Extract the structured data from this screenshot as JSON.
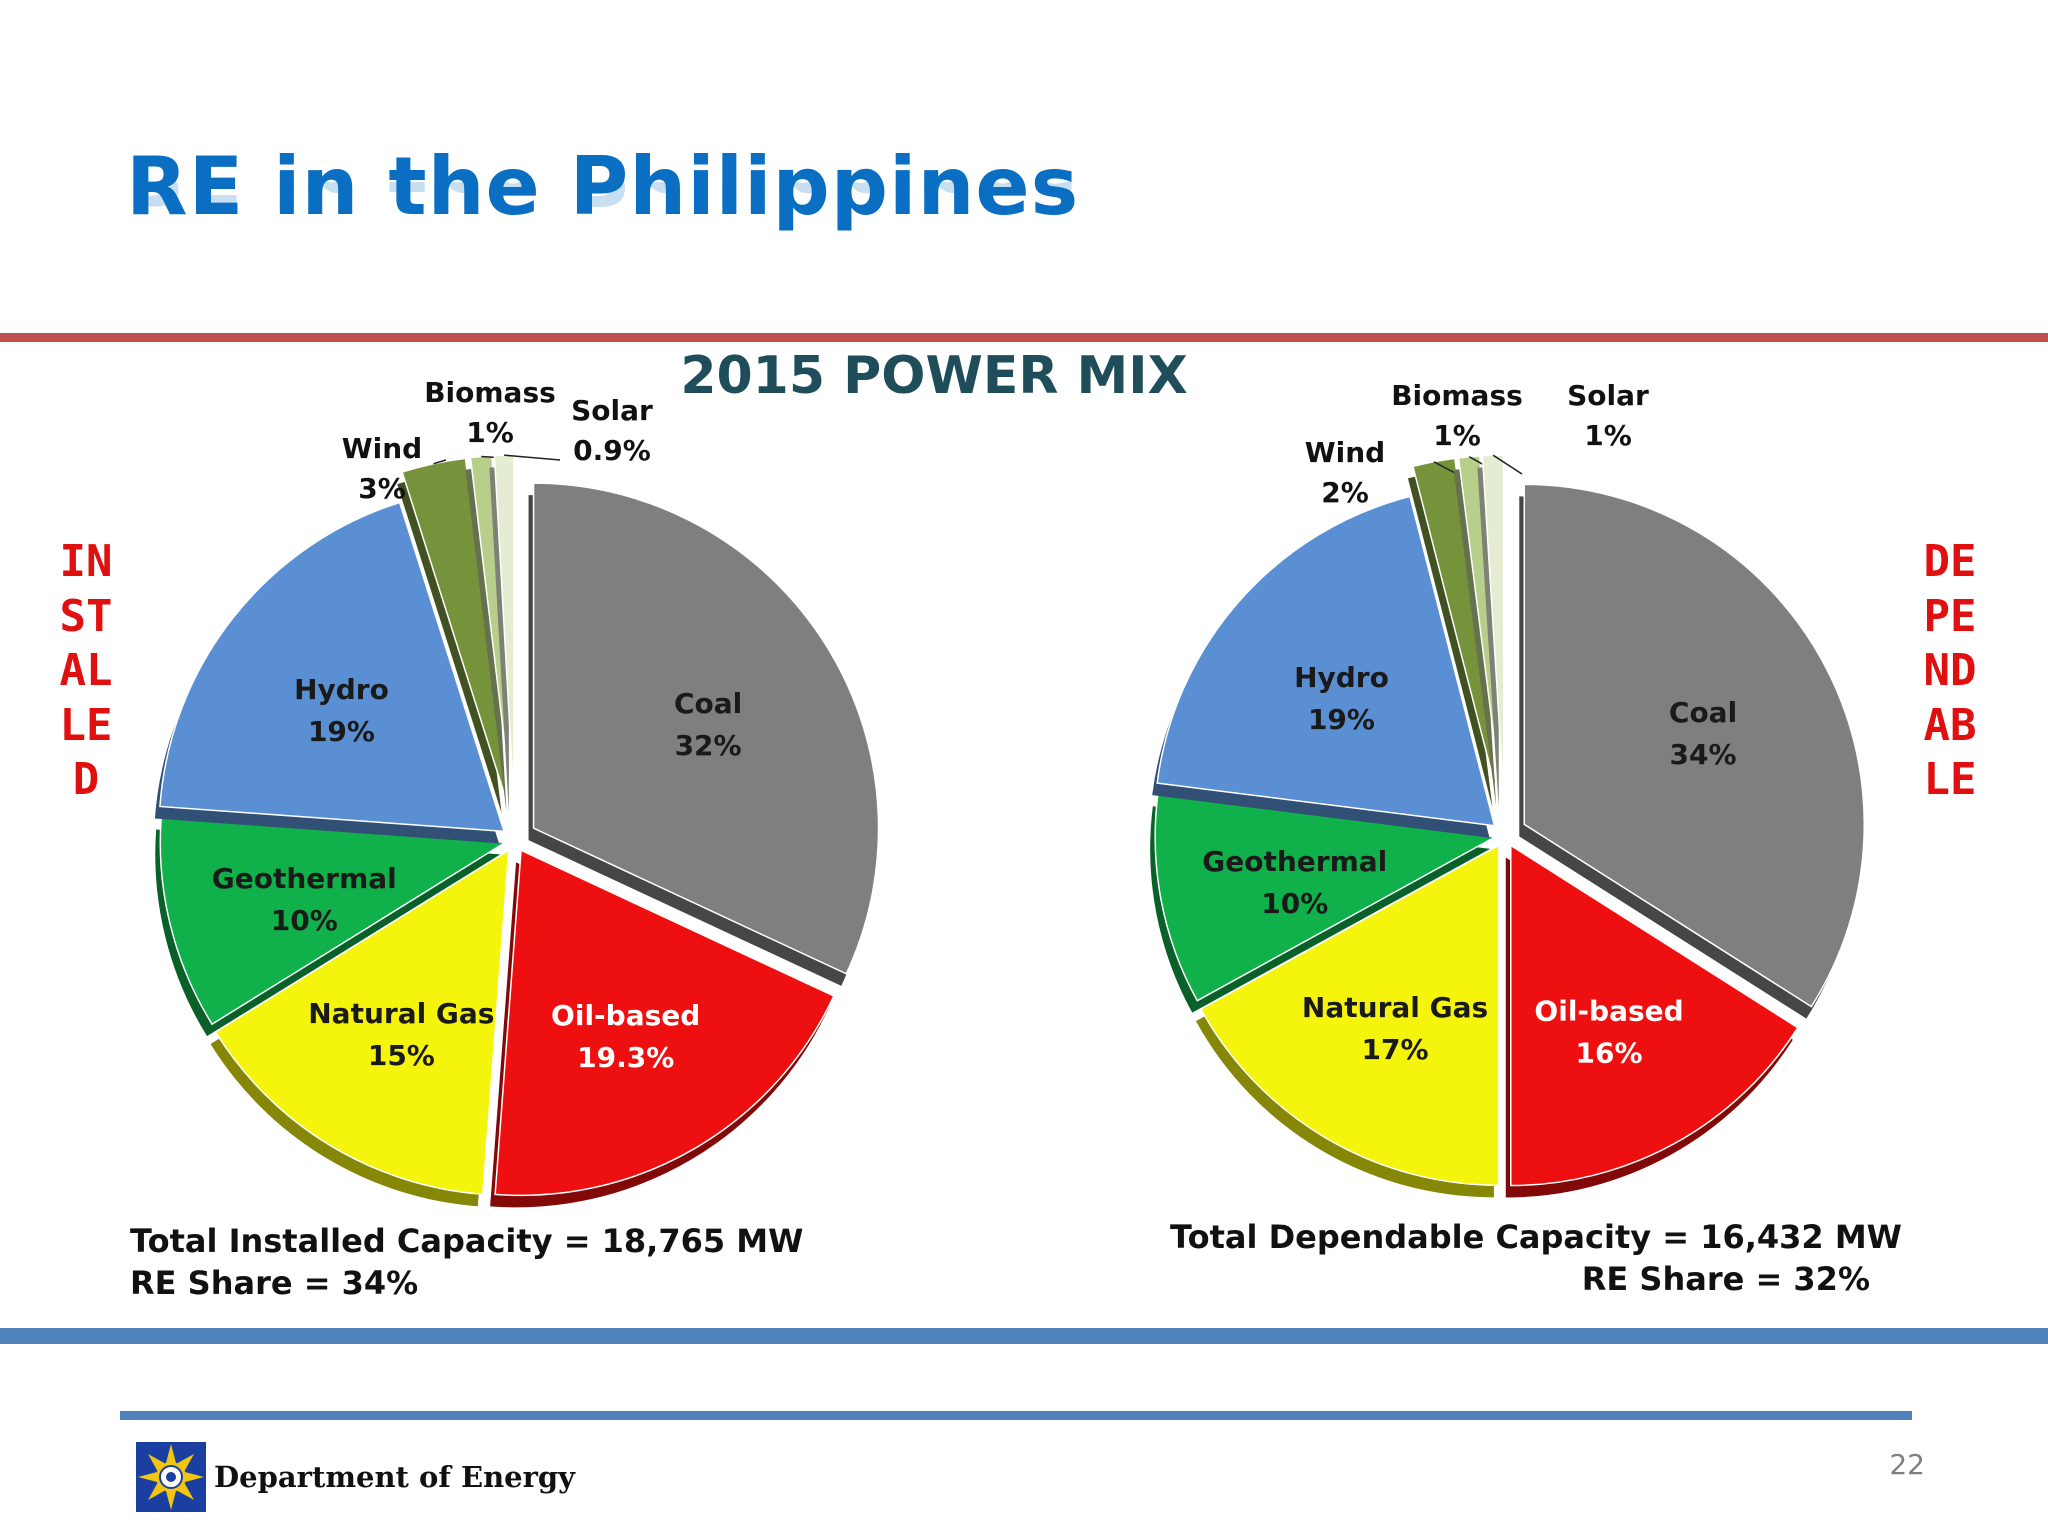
{
  "title": "RE in the Philippines",
  "subtitle": "2015 POWER MIX",
  "side_labels": {
    "left": "INSTALLED",
    "right": "DEPENDABLE"
  },
  "totals": {
    "left": {
      "capacity": "Total Installed Capacity = 18,765 MW",
      "re_share": "RE Share = 34%"
    },
    "right": {
      "capacity": "Total Dependable Capacity = 16,432 MW",
      "re_share": "RE Share = 32%"
    }
  },
  "footer": {
    "label": "Department of Energy",
    "page_number": "22"
  },
  "colors": {
    "Coal": "#7f7f7f",
    "Oil-based": "#ee1010",
    "Natural Gas": "#f4f40c",
    "Geothermal": "#10b04a",
    "Hydro": "#5b8fd4",
    "Wind": "#76933c",
    "Biomass": "#b8cf8c",
    "Solar": "#e4ecd2"
  },
  "chart_data": [
    {
      "type": "pie",
      "title": "",
      "slices": [
        {
          "name": "Coal",
          "value": 32,
          "label": "32%"
        },
        {
          "name": "Oil-based",
          "value": 19.3,
          "label": "19.3%"
        },
        {
          "name": "Natural Gas",
          "value": 15,
          "label": "15%"
        },
        {
          "name": "Geothermal",
          "value": 10,
          "label": "10%"
        },
        {
          "name": "Hydro",
          "value": 19,
          "label": "19%"
        },
        {
          "name": "Wind",
          "value": 3,
          "label": "3%"
        },
        {
          "name": "Biomass",
          "value": 1,
          "label": "1%"
        },
        {
          "name": "Solar",
          "value": 0.9,
          "label": "0.9%"
        }
      ]
    },
    {
      "type": "pie",
      "title": "",
      "slices": [
        {
          "name": "Coal",
          "value": 34,
          "label": "34%"
        },
        {
          "name": "Oil-based",
          "value": 16,
          "label": "16%"
        },
        {
          "name": "Natural Gas",
          "value": 17,
          "label": "17%"
        },
        {
          "name": "Geothermal",
          "value": 10,
          "label": "10%"
        },
        {
          "name": "Hydro",
          "value": 19,
          "label": "19%"
        },
        {
          "name": "Wind",
          "value": 2,
          "label": "2%"
        },
        {
          "name": "Biomass",
          "value": 1,
          "label": "1%"
        },
        {
          "name": "Solar",
          "value": 1,
          "label": "1%"
        }
      ]
    }
  ]
}
